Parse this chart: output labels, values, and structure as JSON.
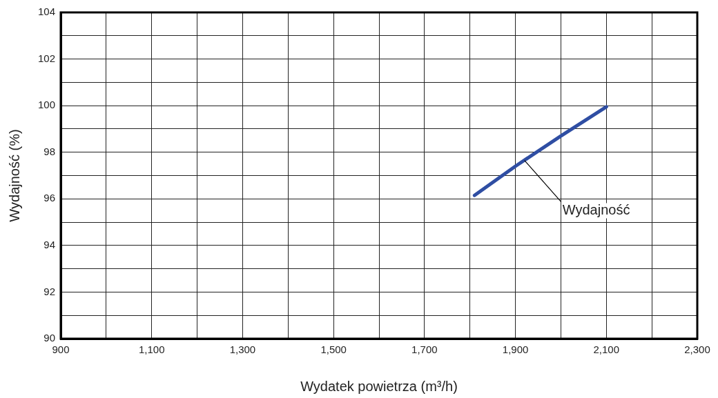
{
  "chart_data": {
    "type": "line",
    "xlabel": "Wydatek powietrza (m³/h)",
    "ylabel": "Wydajność (%)",
    "series": [
      {
        "color": "#2f4ea3",
        "x": [
          1810,
          1900,
          2000,
          2100
        ],
        "values": [
          96.15,
          97.4,
          98.7,
          99.95
        ]
      }
    ],
    "xlim": [
      900,
      2300
    ],
    "xticks": [
      900,
      {
        "value": 1000,
        "label": null
      },
      {
        "value": 1100,
        "label": "1,100"
      },
      {
        "value": 1200,
        "label": null
      },
      {
        "value": 1300,
        "label": "1,300"
      },
      {
        "value": 1400,
        "label": null
      },
      {
        "value": 1500,
        "label": "1,500"
      },
      {
        "value": 1600,
        "label": null
      },
      {
        "value": 1700,
        "label": "1,700"
      },
      {
        "value": 1800,
        "label": null
      },
      {
        "value": 1900,
        "label": "1,900"
      },
      {
        "value": 2000,
        "label": null
      },
      {
        "value": 2100,
        "label": "2,100"
      },
      {
        "value": 2200,
        "label": null
      },
      {
        "value": 2300,
        "label": "2,300"
      }
    ],
    "ylim": [
      90,
      104
    ],
    "yticks": [
      90,
      {
        "value": 91,
        "label": null
      },
      92,
      {
        "value": 93,
        "label": null
      },
      94,
      {
        "value": 95,
        "label": null
      },
      96,
      {
        "value": 97,
        "label": null
      },
      98,
      {
        "value": 99,
        "label": null
      },
      100,
      {
        "value": 101,
        "label": null
      },
      102,
      {
        "value": 103,
        "label": null
      },
      104
    ],
    "annotations": [
      {
        "text": "Wydajność",
        "x": 1920,
        "y": 97.65
      }
    ],
    "grid": true,
    "legend": false,
    "marker": "none",
    "line_style": "solid"
  }
}
